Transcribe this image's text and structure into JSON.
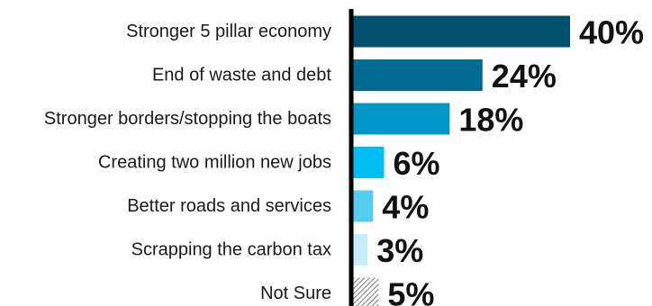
{
  "chart_data": {
    "type": "bar",
    "orientation": "horizontal",
    "categories": [
      "Stronger 5 pillar economy",
      "End of waste and debt",
      "Stronger borders/stopping the boats",
      "Creating two million new jobs",
      "Better roads and services",
      "Scrapping the carbon tax",
      "Not Sure"
    ],
    "values": [
      40,
      24,
      18,
      6,
      4,
      3,
      5
    ],
    "value_labels": [
      "40%",
      "24%",
      "18%",
      "6%",
      "4%",
      "3%",
      "5%"
    ],
    "bar_colors": [
      "#00506e",
      "#006b92",
      "#0096c8",
      "#00bdf2",
      "#56ccf2",
      "#c7ecfb",
      "hatched"
    ],
    "title": "",
    "xlabel": "",
    "ylabel": "",
    "xlim": [
      0,
      40
    ],
    "grid": false,
    "legend": "none"
  }
}
